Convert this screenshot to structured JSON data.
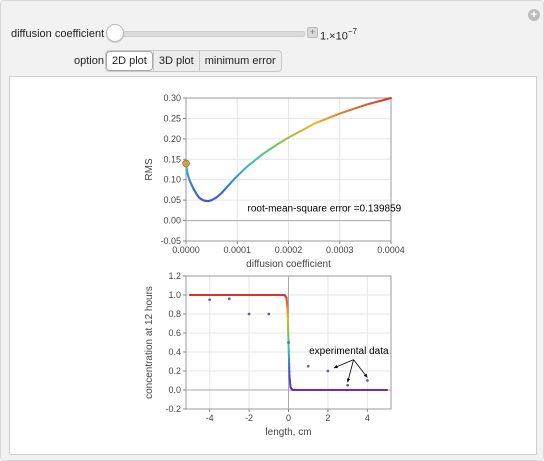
{
  "controls": {
    "slider_label": "diffusion coefficient",
    "slider_value_mantissa": "1.×10",
    "slider_value_exponent": "−7",
    "slider_position": 0.0,
    "option_label": "option",
    "options": [
      "2D plot",
      "3D plot",
      "minimum error"
    ],
    "selected_option": "2D plot"
  },
  "chart_data": [
    {
      "type": "line",
      "title": "",
      "xlabel": "diffusion coefficient",
      "ylabel": "RMS",
      "xlim": [
        0,
        0.0004
      ],
      "ylim": [
        -0.05,
        0.3
      ],
      "x_ticks": [
        "0.0000",
        "0.0001",
        "0.0002",
        "0.0003",
        "0.0004"
      ],
      "y_ticks": [
        "-0.05",
        "0.00",
        "0.05",
        "0.10",
        "0.15",
        "0.20",
        "0.25",
        "0.30"
      ],
      "annotation": "root-mean-square error =0.139859",
      "current_point": {
        "x": 1e-07,
        "y": 0.139859
      },
      "series": [
        {
          "x": [
            0.0,
            1e-06,
            3e-06,
            6e-06,
            1e-05,
            1.5e-05,
            2e-05,
            2.5e-05,
            3e-05,
            3.5e-05,
            4e-05,
            4.5e-05,
            5e-05,
            6e-05,
            7e-05,
            8e-05,
            9e-05,
            0.0001,
            0.00012,
            0.00015,
            0.00018,
            0.0002,
            0.00025,
            0.0003,
            0.00035,
            0.0004
          ],
          "y": [
            0.145,
            0.13,
            0.115,
            0.102,
            0.09,
            0.077,
            0.066,
            0.057,
            0.052,
            0.049,
            0.048,
            0.048,
            0.05,
            0.057,
            0.068,
            0.082,
            0.096,
            0.109,
            0.133,
            0.163,
            0.188,
            0.203,
            0.237,
            0.262,
            0.283,
            0.3
          ]
        }
      ]
    },
    {
      "type": "line",
      "title": "",
      "xlabel": "length, cm",
      "ylabel": "concentration at 12 hours",
      "xlim": [
        -5.2,
        5.2
      ],
      "ylim": [
        -0.2,
        1.2
      ],
      "x_ticks": [
        "-4",
        "-2",
        "0",
        "2",
        "4"
      ],
      "y_ticks": [
        "-0.2",
        "0.0",
        "0.2",
        "0.4",
        "0.6",
        "0.8",
        "1.0",
        "1.2"
      ],
      "annotation": "experimental data",
      "series": [
        {
          "x": [
            -5,
            -0.2,
            -0.1,
            -0.05,
            0,
            0.05,
            0.1,
            0.2,
            5
          ],
          "y": [
            1.0,
            1.0,
            0.97,
            0.85,
            0.5,
            0.15,
            0.03,
            0.0,
            0.0
          ]
        }
      ],
      "experimental_data": {
        "x": [
          -4,
          -3,
          -2,
          -1,
          0,
          1,
          2,
          3,
          4
        ],
        "y": [
          0.95,
          0.96,
          0.8,
          0.8,
          0.5,
          0.25,
          0.2,
          0.05,
          0.1
        ]
      }
    }
  ]
}
